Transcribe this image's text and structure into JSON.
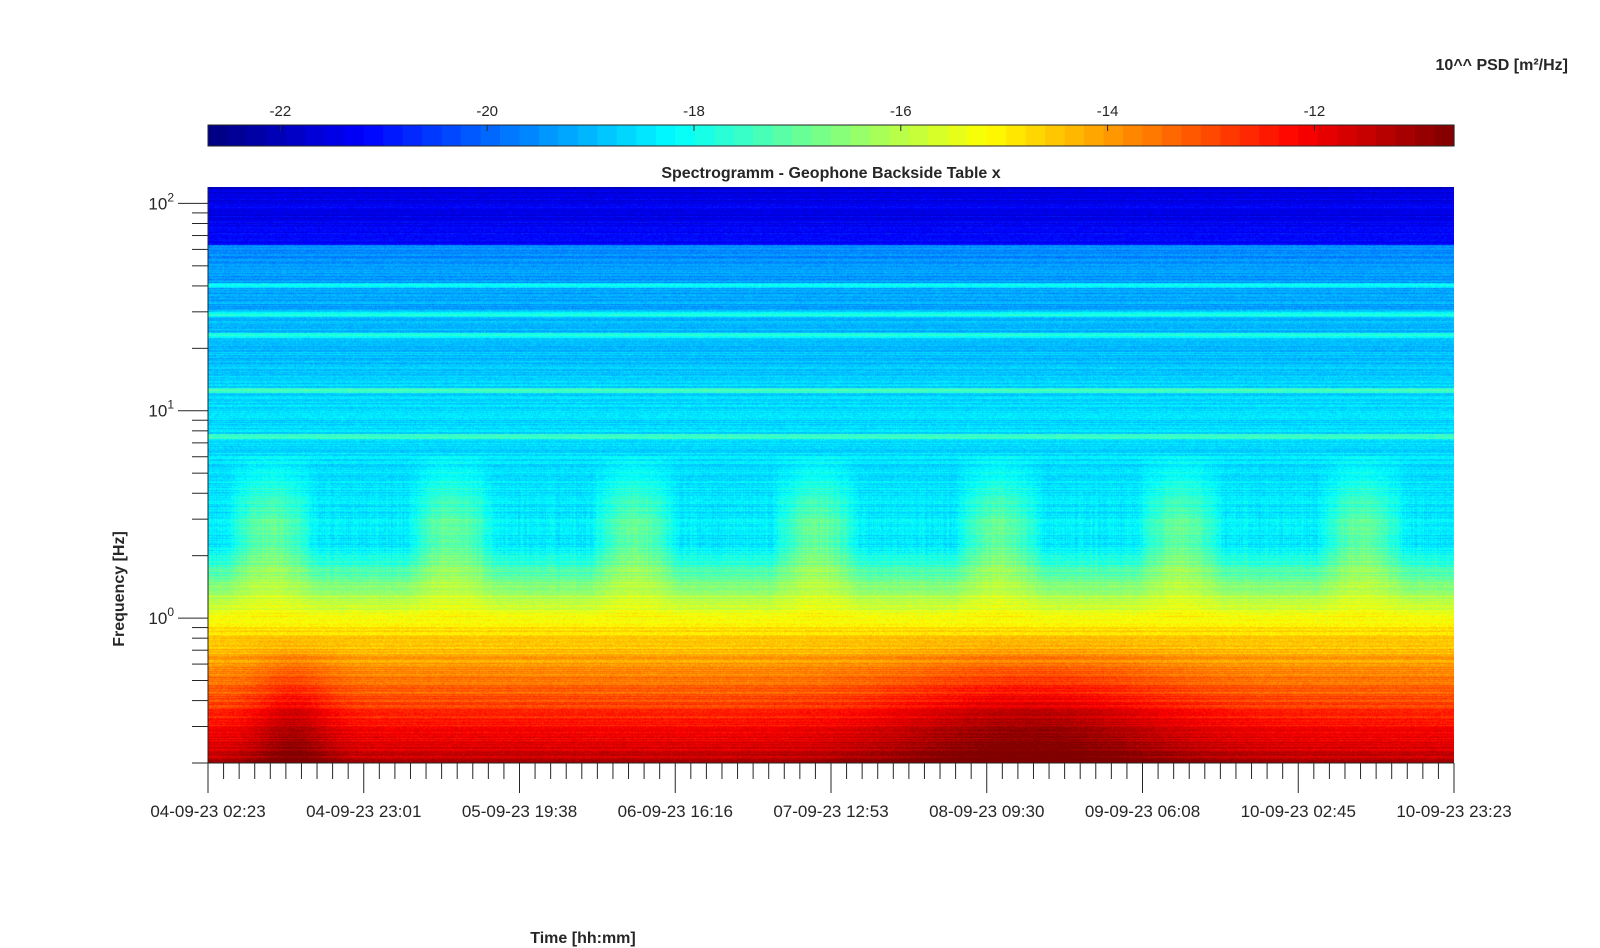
{
  "chart_data": {
    "type": "heatmap",
    "title": "Spectrogramm - Geophone Backside Table x",
    "xlabel": "Time [hh:mm]",
    "ylabel": "Frequency [Hz]",
    "y_scale": "log",
    "ylim": [
      0.2,
      120
    ],
    "y_tick_labels": [
      {
        "base": "10",
        "exp": "2",
        "value": 100
      },
      {
        "base": "10",
        "exp": "1",
        "value": 10
      },
      {
        "base": "10",
        "exp": "0",
        "value": 1
      }
    ],
    "x_tick_labels": [
      "04-09-23 02:23",
      "04-09-23 23:01",
      "05-09-23 19:38",
      "06-09-23 16:16",
      "07-09-23 12:53",
      "08-09-23 09:30",
      "09-09-23 06:08",
      "10-09-23 02:45",
      "10-09-23 23:23"
    ],
    "xlim": [
      "04-09-23 02:23",
      "10-09-23 23:23"
    ],
    "colorbar": {
      "label": "10^^ PSD [m²/Hz]",
      "colormap": "jet",
      "clim": [
        -22.7,
        -10.65
      ],
      "ticks": [
        -22,
        -20,
        -18,
        -16,
        -14,
        -12
      ],
      "tick_labels": [
        "-22",
        "-20",
        "-18",
        "-16",
        "-14",
        "-12"
      ],
      "placement": "top"
    },
    "spectral_features": {
      "high_freq_level_log10_psd": -21.5,
      "mid_freq_level_log10_psd": -18.5,
      "below_1hz_level_log10_psd": -12,
      "persistent_lines_hz": [
        7.5,
        12.5,
        23,
        29,
        40
      ],
      "daytime_bursts_hz_range": [
        1,
        6
      ]
    }
  },
  "colors": {
    "axis": "#262626",
    "background": "#ffffff"
  }
}
